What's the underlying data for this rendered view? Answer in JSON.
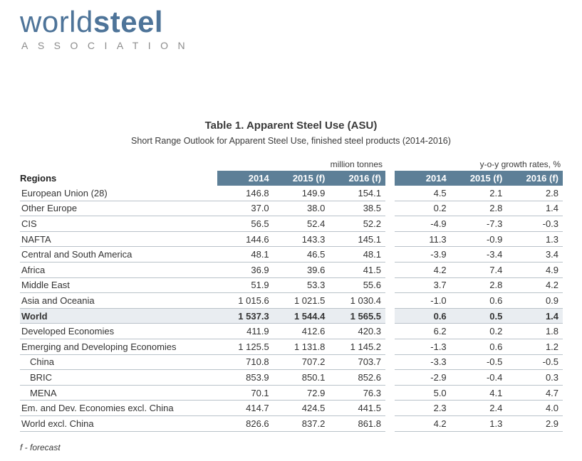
{
  "logo": {
    "word1": "world",
    "word2": "steel",
    "tagline": "ASSOCIATION"
  },
  "title": "Table 1. Apparent Steel Use (ASU)",
  "subtitle": "Short Range Outlook for Apparent Steel Use, finished steel products (2014-2016)",
  "table": {
    "regions_label": "Regions",
    "group1_label": "million tonnes",
    "group2_label": "y-o-y growth rates, %",
    "columns": [
      "2014",
      "2015 (f)",
      "2016 (f)"
    ],
    "rows": [
      {
        "region": "European Union (28)",
        "tonnes": [
          "146.8",
          "149.9",
          "154.1"
        ],
        "growth": [
          "4.5",
          "2.1",
          "2.8"
        ],
        "bold": false,
        "highlight": false,
        "indent": false
      },
      {
        "region": "Other Europe",
        "tonnes": [
          "37.0",
          "38.0",
          "38.5"
        ],
        "growth": [
          "0.2",
          "2.8",
          "1.4"
        ],
        "bold": false,
        "highlight": false,
        "indent": false
      },
      {
        "region": "CIS",
        "tonnes": [
          "56.5",
          "52.4",
          "52.2"
        ],
        "growth": [
          "-4.9",
          "-7.3",
          "-0.3"
        ],
        "bold": false,
        "highlight": false,
        "indent": false
      },
      {
        "region": "NAFTA",
        "tonnes": [
          "144.6",
          "143.3",
          "145.1"
        ],
        "growth": [
          "11.3",
          "-0.9",
          "1.3"
        ],
        "bold": false,
        "highlight": false,
        "indent": false
      },
      {
        "region": "Central and South America",
        "tonnes": [
          "48.1",
          "46.5",
          "48.1"
        ],
        "growth": [
          "-3.9",
          "-3.4",
          "3.4"
        ],
        "bold": false,
        "highlight": false,
        "indent": false
      },
      {
        "region": "Africa",
        "tonnes": [
          "36.9",
          "39.6",
          "41.5"
        ],
        "growth": [
          "4.2",
          "7.4",
          "4.9"
        ],
        "bold": false,
        "highlight": false,
        "indent": false
      },
      {
        "region": "Middle East",
        "tonnes": [
          "51.9",
          "53.3",
          "55.6"
        ],
        "growth": [
          "3.7",
          "2.8",
          "4.2"
        ],
        "bold": false,
        "highlight": false,
        "indent": false
      },
      {
        "region": "Asia and Oceania",
        "tonnes": [
          "1 015.6",
          "1 021.5",
          "1 030.4"
        ],
        "growth": [
          "-1.0",
          "0.6",
          "0.9"
        ],
        "bold": false,
        "highlight": false,
        "indent": false
      },
      {
        "region": "World",
        "tonnes": [
          "1 537.3",
          "1 544.4",
          "1 565.5"
        ],
        "growth": [
          "0.6",
          "0.5",
          "1.4"
        ],
        "bold": true,
        "highlight": true,
        "indent": false
      },
      {
        "region": "Developed Economies",
        "tonnes": [
          "411.9",
          "412.6",
          "420.3"
        ],
        "growth": [
          "6.2",
          "0.2",
          "1.8"
        ],
        "bold": false,
        "highlight": false,
        "indent": false
      },
      {
        "region": "Emerging and Developing Economies",
        "tonnes": [
          "1 125.5",
          "1 131.8",
          "1 145.2"
        ],
        "growth": [
          "-1.3",
          "0.6",
          "1.2"
        ],
        "bold": false,
        "highlight": false,
        "indent": false
      },
      {
        "region": "China",
        "tonnes": [
          "710.8",
          "707.2",
          "703.7"
        ],
        "growth": [
          "-3.3",
          "-0.5",
          "-0.5"
        ],
        "bold": false,
        "highlight": false,
        "indent": true
      },
      {
        "region": "BRIC",
        "tonnes": [
          "853.9",
          "850.1",
          "852.6"
        ],
        "growth": [
          "-2.9",
          "-0.4",
          "0.3"
        ],
        "bold": false,
        "highlight": false,
        "indent": true
      },
      {
        "region": "MENA",
        "tonnes": [
          "70.1",
          "72.9",
          "76.3"
        ],
        "growth": [
          "5.0",
          "4.1",
          "4.7"
        ],
        "bold": false,
        "highlight": false,
        "indent": true
      },
      {
        "region": "Em. and Dev. Economies excl. China",
        "tonnes": [
          "414.7",
          "424.5",
          "441.5"
        ],
        "growth": [
          "2.3",
          "2.4",
          "4.0"
        ],
        "bold": false,
        "highlight": false,
        "indent": false
      },
      {
        "region": "World excl. China",
        "tonnes": [
          "826.6",
          "837.2",
          "861.8"
        ],
        "growth": [
          "4.2",
          "1.3",
          "2.9"
        ],
        "bold": false,
        "highlight": false,
        "indent": false
      }
    ]
  },
  "footnote": "f - forecast",
  "colors": {
    "header_band": "#5d7f97",
    "header_text": "#ffffff",
    "highlight_row": "#e9edf1",
    "logo_blue": "#4e7499",
    "association_gray": "#8c8c8c",
    "row_line": "#b9c2c9",
    "text": "#333333"
  }
}
